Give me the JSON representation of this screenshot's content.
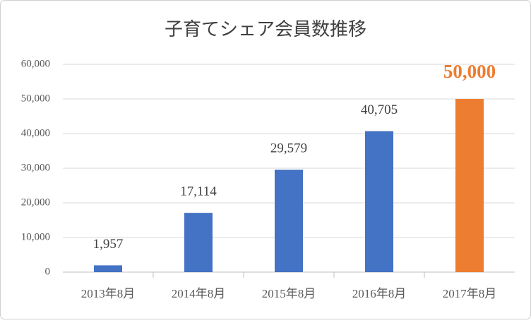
{
  "chart_data": {
    "type": "bar",
    "title": "子育てシェア会員数推移",
    "categories": [
      "2013年8月",
      "2014年8月",
      "2015年8月",
      "2016年8月",
      "2017年8月"
    ],
    "values": [
      1957,
      17114,
      29579,
      40705,
      50000
    ],
    "value_labels": [
      "1,957",
      "17,114",
      "29,579",
      "40,705",
      "50,000"
    ],
    "colors": [
      "#4472c4",
      "#4472c4",
      "#4472c4",
      "#4472c4",
      "#ed7d31"
    ],
    "ylim": [
      0,
      60000
    ],
    "yticks": [
      0,
      {
        "value": 10000,
        "label": "10,000"
      },
      {
        "value": 20000,
        "label": "20,000"
      },
      {
        "value": 30000,
        "label": "30,000"
      },
      {
        "value": 40000,
        "label": "40,000"
      },
      {
        "value": 50000,
        "label": "50,000"
      },
      {
        "value": 60000,
        "label": "60,000"
      }
    ],
    "grid": true
  }
}
